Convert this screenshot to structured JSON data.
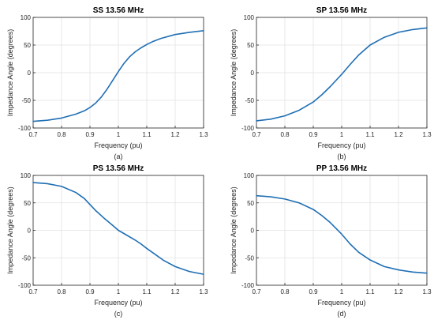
{
  "chart_data": [
    {
      "type": "line",
      "title": "SS 13.56 MHz",
      "xlabel": "Frequency (pu)",
      "ylabel": "Impedance Angle (degrees)",
      "caption": "(a)",
      "xlim": [
        0.7,
        1.3
      ],
      "ylim": [
        -100,
        100
      ],
      "xticks": [
        "0.7",
        "0.8",
        "0.9",
        "1",
        "1.1",
        "1.2",
        "1.3"
      ],
      "yticks": [
        "-100",
        "-50",
        "0",
        "50",
        "100"
      ],
      "grid": true,
      "line_color": "#1f6fb4",
      "series": [
        {
          "x": [
            0.7,
            0.75,
            0.8,
            0.85,
            0.88,
            0.9,
            0.92,
            0.94,
            0.96,
            0.98,
            1.0,
            1.02,
            1.04,
            1.06,
            1.08,
            1.1,
            1.12,
            1.15,
            1.2,
            1.25,
            1.3
          ],
          "y": [
            -88,
            -86,
            -82,
            -75,
            -69,
            -63,
            -55,
            -44,
            -30,
            -14,
            2,
            17,
            29,
            38,
            45,
            51,
            56,
            62,
            69,
            73,
            76
          ]
        }
      ]
    },
    {
      "type": "line",
      "title": "SP 13.56 MHz",
      "xlabel": "Frequency (pu)",
      "ylabel": "Impedance Angle (degrees)",
      "caption": "(b)",
      "xlim": [
        0.7,
        1.3
      ],
      "ylim": [
        -100,
        100
      ],
      "xticks": [
        "0.7",
        "0.8",
        "0.9",
        "1",
        "1.1",
        "1.2",
        "1.3"
      ],
      "yticks": [
        "-100",
        "-50",
        "0",
        "50",
        "100"
      ],
      "grid": true,
      "line_color": "#1f6fb4",
      "series": [
        {
          "x": [
            0.7,
            0.75,
            0.8,
            0.85,
            0.9,
            0.93,
            0.96,
            1.0,
            1.03,
            1.06,
            1.1,
            1.15,
            1.2,
            1.25,
            1.3
          ],
          "y": [
            -87,
            -84,
            -78,
            -68,
            -53,
            -40,
            -25,
            -3,
            15,
            32,
            50,
            64,
            73,
            78,
            81
          ]
        }
      ]
    },
    {
      "type": "line",
      "title": "PS 13.56 MHz",
      "xlabel": "Frequency (pu)",
      "ylabel": "Impedance Angle (degrees)",
      "caption": "(c)",
      "xlim": [
        0.7,
        1.3
      ],
      "ylim": [
        -100,
        100
      ],
      "xticks": [
        "0.7",
        "0.8",
        "0.9",
        "1",
        "1.1",
        "1.2",
        "1.3"
      ],
      "yticks": [
        "-100",
        "-50",
        "0",
        "50",
        "100"
      ],
      "grid": true,
      "line_color": "#1f6fb4",
      "series": [
        {
          "x": [
            0.7,
            0.75,
            0.8,
            0.85,
            0.88,
            0.9,
            0.92,
            0.95,
            0.98,
            1.0,
            1.03,
            1.06,
            1.08,
            1.1,
            1.13,
            1.16,
            1.2,
            1.25,
            1.3
          ],
          "y": [
            87,
            85,
            80,
            69,
            58,
            47,
            36,
            22,
            9,
            0,
            -9,
            -18,
            -25,
            -33,
            -44,
            -55,
            -66,
            -75,
            -80
          ]
        }
      ]
    },
    {
      "type": "line",
      "title": "PP 13.56 MHz",
      "xlabel": "Frequency (pu)",
      "ylabel": "Impedance Angle (degrees)",
      "caption": "(d)",
      "xlim": [
        0.7,
        1.3
      ],
      "ylim": [
        -100,
        100
      ],
      "xticks": [
        "0.7",
        "0.8",
        "0.9",
        "1",
        "1.1",
        "1.2",
        "1.3"
      ],
      "yticks": [
        "-100",
        "-50",
        "0",
        "50",
        "100"
      ],
      "grid": true,
      "line_color": "#1f6fb4",
      "series": [
        {
          "x": [
            0.7,
            0.75,
            0.8,
            0.85,
            0.9,
            0.93,
            0.96,
            1.0,
            1.03,
            1.06,
            1.1,
            1.15,
            1.2,
            1.25,
            1.3
          ],
          "y": [
            63,
            61,
            57,
            50,
            38,
            27,
            14,
            -7,
            -25,
            -40,
            -54,
            -66,
            -72,
            -76,
            -78
          ]
        }
      ]
    }
  ]
}
